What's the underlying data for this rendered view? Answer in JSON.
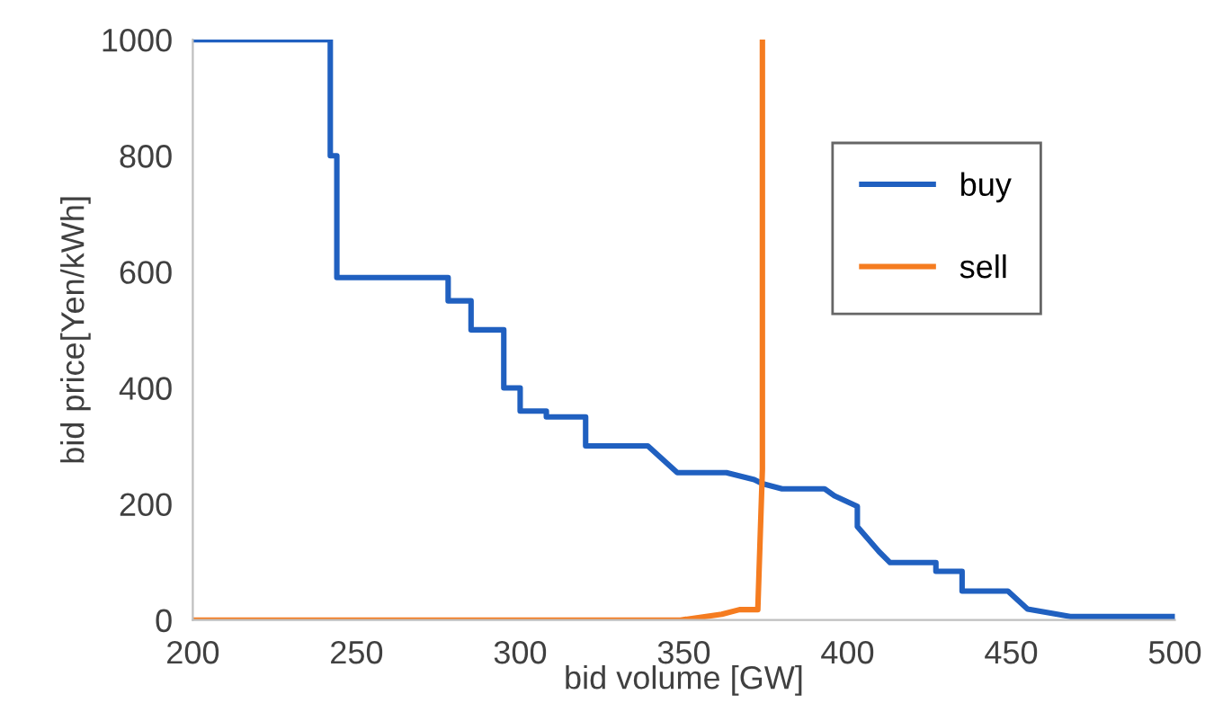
{
  "chart_data": {
    "type": "line",
    "xlabel": "bid volume [GW]",
    "ylabel": "bid price[Yen/kWh]",
    "xlim": [
      200,
      500
    ],
    "xticks": [
      200,
      250,
      300,
      350,
      400,
      450,
      500
    ],
    "ylim": [
      0,
      1000
    ],
    "yticks": [
      0,
      200,
      400,
      600,
      800,
      1000
    ],
    "grid": false,
    "legend": "top right",
    "marker": "none",
    "line_style": "solid",
    "series": [
      {
        "name": "buy",
        "color": "#2060c0",
        "x": [
          200,
          242,
          242,
          244,
          244,
          278,
          278,
          285,
          285,
          295,
          295,
          300,
          300,
          308,
          308,
          320,
          320,
          339,
          348,
          363,
          371.5,
          374,
          380,
          393,
          396,
          403,
          403,
          409.6,
          413,
          427,
          427,
          435,
          435,
          449,
          455,
          468,
          500
        ],
        "values": [
          1000,
          1000,
          800,
          800,
          590,
          590,
          550,
          550,
          500,
          500,
          400,
          400,
          360,
          360,
          350,
          350,
          300,
          300,
          254,
          254,
          242,
          235,
          226,
          226,
          214,
          196,
          161,
          118,
          99,
          99,
          84,
          84,
          50,
          50,
          19,
          6,
          6
        ]
      },
      {
        "name": "sell",
        "color": "#f57c20",
        "x": [
          200,
          349,
          361.6,
          367,
          372.6,
          374,
          374
        ],
        "values": [
          0,
          0,
          10,
          18,
          18,
          260,
          1000
        ]
      }
    ]
  }
}
